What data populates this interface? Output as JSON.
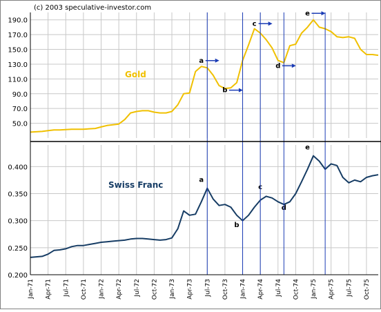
{
  "copyright": "(c) 2003 speculative-investor.com",
  "chart_data": [
    {
      "type": "line",
      "series": [
        {
          "name": "Gold",
          "x": [
            "1971-01",
            "1971-02",
            "1971-03",
            "1971-04",
            "1971-05",
            "1971-06",
            "1971-07",
            "1971-08",
            "1971-09",
            "1971-10",
            "1971-11",
            "1971-12",
            "1972-01",
            "1972-02",
            "1972-03",
            "1972-04",
            "1972-05",
            "1972-06",
            "1972-07",
            "1972-08",
            "1972-09",
            "1972-10",
            "1972-11",
            "1972-12",
            "1973-01",
            "1973-02",
            "1973-03",
            "1973-04",
            "1973-05",
            "1973-06",
            "1973-07",
            "1973-08",
            "1973-09",
            "1973-10",
            "1973-11",
            "1973-12",
            "1974-01",
            "1974-02",
            "1974-03",
            "1974-04",
            "1974-05",
            "1974-06",
            "1974-07",
            "1974-08",
            "1974-09",
            "1974-10",
            "1974-11",
            "1974-12",
            "1975-01",
            "1975-02",
            "1975-03",
            "1975-04",
            "1975-05",
            "1975-06",
            "1975-07",
            "1975-08",
            "1975-09",
            "1975-10",
            "1975-11",
            "1975-12"
          ],
          "values": [
            38,
            38.5,
            39,
            40,
            41,
            41,
            41.5,
            42,
            42,
            42,
            42.5,
            43,
            45,
            47,
            48,
            49,
            55,
            64,
            66,
            67,
            67,
            65,
            64,
            64,
            66,
            75,
            90,
            91,
            120,
            127,
            125,
            115,
            101,
            97,
            98,
            105,
            135,
            156,
            178,
            172,
            163,
            152,
            135,
            132,
            155,
            157,
            172,
            180,
            190,
            180,
            178,
            174,
            167,
            166,
            167,
            165,
            150,
            143,
            143,
            142
          ]
        }
      ],
      "ylim": [
        30,
        200
      ],
      "y_ticks": [
        "50.0",
        "70.0",
        "90.0",
        "110.0",
        "130.0",
        "150.0",
        "170.0",
        "190.0"
      ],
      "color": "#f0c000",
      "annotations": [
        {
          "label": "a",
          "x": "1973-06",
          "y": 132,
          "arrow": "right"
        },
        {
          "label": "b",
          "x": "1973-10",
          "y": 92,
          "arrow": "right"
        },
        {
          "label": "c",
          "x": "1974-03",
          "y": 182,
          "arrow": "right"
        },
        {
          "label": "d",
          "x": "1974-07",
          "y": 125,
          "arrow": "right"
        },
        {
          "label": "e",
          "x": "1974-12",
          "y": 196,
          "arrow": "right"
        }
      ],
      "series_label": "Gold"
    },
    {
      "type": "line",
      "series": [
        {
          "name": "Swiss Franc",
          "x": [
            "1971-01",
            "1971-02",
            "1971-03",
            "1971-04",
            "1971-05",
            "1971-06",
            "1971-07",
            "1971-08",
            "1971-09",
            "1971-10",
            "1971-11",
            "1971-12",
            "1972-01",
            "1972-02",
            "1972-03",
            "1972-04",
            "1972-05",
            "1972-06",
            "1972-07",
            "1972-08",
            "1972-09",
            "1972-10",
            "1972-11",
            "1972-12",
            "1973-01",
            "1973-02",
            "1973-03",
            "1973-04",
            "1973-05",
            "1973-06",
            "1973-07",
            "1973-08",
            "1973-09",
            "1973-10",
            "1973-11",
            "1973-12",
            "1974-01",
            "1974-02",
            "1974-03",
            "1974-04",
            "1974-05",
            "1974-06",
            "1974-07",
            "1974-08",
            "1974-09",
            "1974-10",
            "1974-11",
            "1974-12",
            "1975-01",
            "1975-02",
            "1975-03",
            "1975-04",
            "1975-05",
            "1975-06",
            "1975-07",
            "1975-08",
            "1975-09",
            "1975-10",
            "1975-11",
            "1975-12"
          ],
          "values": [
            0.232,
            0.233,
            0.234,
            0.238,
            0.245,
            0.246,
            0.248,
            0.252,
            0.254,
            0.254,
            0.256,
            0.258,
            0.26,
            0.261,
            0.262,
            0.263,
            0.264,
            0.266,
            0.267,
            0.267,
            0.266,
            0.265,
            0.264,
            0.265,
            0.268,
            0.285,
            0.318,
            0.31,
            0.312,
            0.335,
            0.36,
            0.34,
            0.328,
            0.33,
            0.325,
            0.31,
            0.3,
            0.31,
            0.325,
            0.338,
            0.345,
            0.342,
            0.335,
            0.33,
            0.335,
            0.35,
            0.372,
            0.395,
            0.42,
            0.41,
            0.395,
            0.405,
            0.402,
            0.38,
            0.37,
            0.375,
            0.372,
            0.38,
            0.383,
            0.385
          ]
        }
      ],
      "ylim": [
        0.2,
        0.44
      ],
      "y_ticks": [
        "0.200",
        "0.250",
        "0.300",
        "0.350",
        "0.400"
      ],
      "color": "#163c64",
      "annotations": [
        {
          "label": "a",
          "x": "1973-06",
          "y": 0.372
        },
        {
          "label": "b",
          "x": "1973-12",
          "y": 0.288
        },
        {
          "label": "c",
          "x": "1974-04",
          "y": 0.358
        },
        {
          "label": "d",
          "x": "1974-08",
          "y": 0.32
        },
        {
          "label": "e",
          "x": "1974-12",
          "y": 0.432
        }
      ],
      "series_label": "Swiss Franc"
    }
  ],
  "x_ticks": [
    "Jan-71",
    "Apr-71",
    "Jul-71",
    "Oct-71",
    "Jan-72",
    "Apr-72",
    "Jul-72",
    "Oct-72",
    "Jan-73",
    "Apr-73",
    "Jul-73",
    "Oct-73",
    "Jan-74",
    "Apr-74",
    "Jul-74",
    "Oct-74",
    "Jan-75",
    "Apr-75",
    "Jul-75",
    "Oct-75"
  ],
  "vlines_at": [
    "1973-07",
    "1974-01",
    "1974-04",
    "1974-08",
    "1975-03"
  ],
  "colors": {
    "grid": "#c8c8c8",
    "divider": "#000000",
    "vline": "#1a3bb5",
    "arrow": "#1a3bb5",
    "axis_text": "#000000"
  }
}
